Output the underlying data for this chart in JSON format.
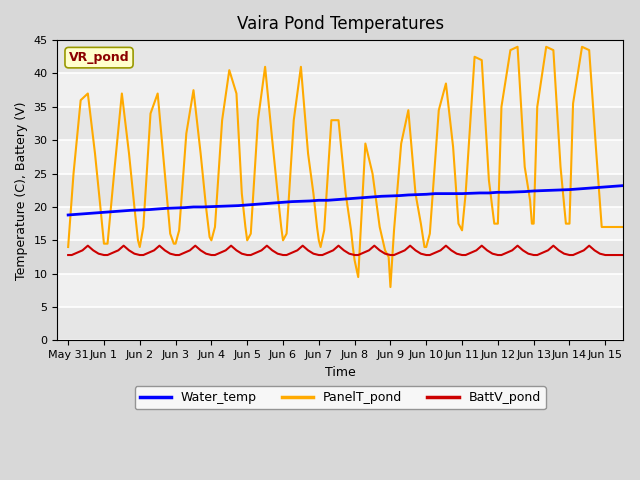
{
  "title": "Vaira Pond Temperatures",
  "xlabel": "Time",
  "ylabel": "Temperature (C), Battery (V)",
  "annotation_text": "VR_pond",
  "ylim": [
    0,
    45
  ],
  "yticks": [
    0,
    5,
    10,
    15,
    20,
    25,
    30,
    35,
    40,
    45
  ],
  "xlim": [
    -0.3,
    15.5
  ],
  "xtick_labels": [
    "May 31",
    "Jun 1",
    "Jun 2",
    "Jun 3",
    "Jun 4",
    "Jun 5",
    "Jun 6",
    "Jun 7",
    "Jun 8",
    "Jun 9",
    "Jun 10",
    "Jun 11",
    "Jun 12",
    "Jun 13",
    "Jun 14",
    "Jun 15"
  ],
  "xtick_positions": [
    0,
    1,
    2,
    3,
    4,
    5,
    6,
    7,
    8,
    9,
    10,
    11,
    12,
    13,
    14,
    15
  ],
  "water_temp_color": "#0000ff",
  "panel_temp_color": "#ffaa00",
  "batt_v_color": "#cc0000",
  "legend_labels": [
    "Water_temp",
    "PanelT_pond",
    "BattV_pond"
  ],
  "water_temp_x": [
    0.0,
    0.25,
    0.5,
    0.75,
    1.0,
    1.25,
    1.5,
    1.75,
    2.0,
    2.25,
    2.5,
    2.75,
    3.0,
    3.25,
    3.5,
    3.75,
    4.0,
    4.25,
    4.5,
    4.75,
    5.0,
    5.25,
    5.5,
    5.75,
    6.0,
    6.25,
    6.5,
    6.75,
    7.0,
    7.25,
    7.5,
    7.75,
    8.0,
    8.25,
    8.5,
    8.75,
    9.0,
    9.25,
    9.5,
    9.75,
    10.0,
    10.25,
    10.5,
    10.75,
    11.0,
    11.25,
    11.5,
    11.75,
    12.0,
    12.25,
    12.5,
    12.75,
    13.0,
    13.25,
    13.5,
    13.75,
    14.0,
    14.25,
    14.5,
    14.75,
    15.0,
    15.25,
    15.5
  ],
  "water_temp_y": [
    18.8,
    18.9,
    19.0,
    19.1,
    19.2,
    19.3,
    19.4,
    19.5,
    19.55,
    19.6,
    19.7,
    19.8,
    19.85,
    19.9,
    20.0,
    20.0,
    20.05,
    20.1,
    20.15,
    20.2,
    20.3,
    20.4,
    20.5,
    20.6,
    20.7,
    20.8,
    20.85,
    20.9,
    21.0,
    21.0,
    21.1,
    21.2,
    21.3,
    21.4,
    21.5,
    21.6,
    21.65,
    21.7,
    21.8,
    21.85,
    21.9,
    22.0,
    22.0,
    22.0,
    22.0,
    22.05,
    22.1,
    22.1,
    22.2,
    22.2,
    22.25,
    22.3,
    22.4,
    22.45,
    22.5,
    22.55,
    22.6,
    22.7,
    22.8,
    22.9,
    23.0,
    23.1,
    23.2
  ],
  "panel_temp_x": [
    0.0,
    0.15,
    0.35,
    0.55,
    0.75,
    0.9,
    1.0,
    1.1,
    1.3,
    1.5,
    1.7,
    1.85,
    1.95,
    2.0,
    2.1,
    2.3,
    2.5,
    2.7,
    2.85,
    2.95,
    3.0,
    3.1,
    3.3,
    3.5,
    3.7,
    3.85,
    3.95,
    4.0,
    4.1,
    4.3,
    4.5,
    4.7,
    4.85,
    4.95,
    5.0,
    5.1,
    5.3,
    5.5,
    5.7,
    5.85,
    5.95,
    6.0,
    6.1,
    6.3,
    6.5,
    6.7,
    6.85,
    6.95,
    7.0,
    7.05,
    7.15,
    7.35,
    7.55,
    7.75,
    7.9,
    7.95,
    8.0,
    8.1,
    8.3,
    8.5,
    8.7,
    8.85,
    8.95,
    9.0,
    9.1,
    9.3,
    9.5,
    9.7,
    9.85,
    9.95,
    10.0,
    10.1,
    10.35,
    10.55,
    10.75,
    10.9,
    10.95,
    11.0,
    11.1,
    11.35,
    11.55,
    11.75,
    11.9,
    11.95,
    12.0,
    12.1,
    12.35,
    12.55,
    12.75,
    12.9,
    12.95,
    13.0,
    13.1,
    13.35,
    13.55,
    13.75,
    13.9,
    13.95,
    14.0,
    14.1,
    14.35,
    14.55,
    14.75,
    14.9,
    14.95,
    15.0,
    15.2,
    15.5
  ],
  "panel_temp_y": [
    14.0,
    25.0,
    36.0,
    37.0,
    28.0,
    20.0,
    14.5,
    14.5,
    26.0,
    37.0,
    28.0,
    20.0,
    15.0,
    14.0,
    17.0,
    34.0,
    37.0,
    25.0,
    16.0,
    14.5,
    14.5,
    16.5,
    31.0,
    37.5,
    28.0,
    20.0,
    15.5,
    15.0,
    17.0,
    33.0,
    40.5,
    37.0,
    22.0,
    17.0,
    15.0,
    16.0,
    33.0,
    41.0,
    30.0,
    22.0,
    17.0,
    15.0,
    16.0,
    33.0,
    41.0,
    28.0,
    22.0,
    17.0,
    15.0,
    14.0,
    16.5,
    33.0,
    33.0,
    22.0,
    16.5,
    14.0,
    12.0,
    9.5,
    29.5,
    25.0,
    17.0,
    13.5,
    12.5,
    8.0,
    16.5,
    29.5,
    34.5,
    22.0,
    17.5,
    14.0,
    14.0,
    16.0,
    34.5,
    38.5,
    29.0,
    17.5,
    17.0,
    16.5,
    22.0,
    42.5,
    42.0,
    24.0,
    17.5,
    17.5,
    17.5,
    35.0,
    43.5,
    44.0,
    26.0,
    21.0,
    17.5,
    17.5,
    35.0,
    44.0,
    43.5,
    26.0,
    17.5,
    17.5,
    17.5,
    35.5,
    44.0,
    43.5,
    28.0,
    17.0,
    17.0,
    17.0,
    17.0,
    17.0
  ],
  "batt_x": [
    0.0,
    0.1,
    0.4,
    0.55,
    0.7,
    0.85,
    1.0,
    1.1,
    1.4,
    1.55,
    1.7,
    1.85,
    2.0,
    2.1,
    2.4,
    2.55,
    2.7,
    2.85,
    3.0,
    3.1,
    3.4,
    3.55,
    3.7,
    3.85,
    4.0,
    4.1,
    4.4,
    4.55,
    4.7,
    4.85,
    5.0,
    5.1,
    5.4,
    5.55,
    5.7,
    5.85,
    6.0,
    6.1,
    6.4,
    6.55,
    6.7,
    6.85,
    7.0,
    7.1,
    7.4,
    7.55,
    7.7,
    7.85,
    8.0,
    8.1,
    8.4,
    8.55,
    8.7,
    8.85,
    9.0,
    9.1,
    9.4,
    9.55,
    9.7,
    9.85,
    10.0,
    10.1,
    10.4,
    10.55,
    10.7,
    10.85,
    11.0,
    11.1,
    11.4,
    11.55,
    11.7,
    11.85,
    12.0,
    12.1,
    12.4,
    12.55,
    12.7,
    12.85,
    13.0,
    13.1,
    13.4,
    13.55,
    13.7,
    13.85,
    14.0,
    14.1,
    14.4,
    14.55,
    14.7,
    14.85,
    15.0,
    15.3,
    15.5
  ],
  "batt_y": [
    12.8,
    12.8,
    13.5,
    14.2,
    13.5,
    13.0,
    12.8,
    12.8,
    13.5,
    14.2,
    13.5,
    13.0,
    12.8,
    12.8,
    13.5,
    14.2,
    13.5,
    13.0,
    12.8,
    12.8,
    13.5,
    14.2,
    13.5,
    13.0,
    12.8,
    12.8,
    13.5,
    14.2,
    13.5,
    13.0,
    12.8,
    12.8,
    13.5,
    14.2,
    13.5,
    13.0,
    12.8,
    12.8,
    13.5,
    14.2,
    13.5,
    13.0,
    12.8,
    12.8,
    13.5,
    14.2,
    13.5,
    13.0,
    12.8,
    12.8,
    13.5,
    14.2,
    13.5,
    13.0,
    12.8,
    12.8,
    13.5,
    14.2,
    13.5,
    13.0,
    12.8,
    12.8,
    13.5,
    14.2,
    13.5,
    13.0,
    12.8,
    12.8,
    13.5,
    14.2,
    13.5,
    13.0,
    12.8,
    12.8,
    13.5,
    14.2,
    13.5,
    13.0,
    12.8,
    12.8,
    13.5,
    14.2,
    13.5,
    13.0,
    12.8,
    12.8,
    13.5,
    14.2,
    13.5,
    13.0,
    12.8,
    12.8,
    12.8
  ]
}
